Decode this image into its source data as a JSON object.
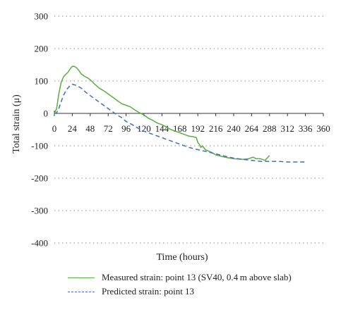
{
  "chart_data": {
    "type": "line",
    "title": "",
    "xlabel": "Time (hours)",
    "ylabel": "Total strain (μ)",
    "xlim": [
      0,
      360
    ],
    "ylim": [
      -400,
      300
    ],
    "xticks": [
      0,
      24,
      48,
      72,
      96,
      120,
      144,
      168,
      192,
      216,
      240,
      264,
      288,
      312,
      336,
      360
    ],
    "yticks": [
      300,
      200,
      100,
      0,
      -100,
      -200,
      -300,
      -400
    ],
    "grid": "horizontal dotted",
    "legend_position": "bottom",
    "series": [
      {
        "name": "Measured strain: point 13 (SV40, 0.4 m above slab)",
        "color": "#5aae3f",
        "style": "solid",
        "x": [
          0,
          3,
          6,
          9,
          12,
          15,
          18,
          21,
          24,
          27,
          30,
          33,
          36,
          40,
          44,
          48,
          54,
          60,
          66,
          72,
          78,
          84,
          90,
          96,
          102,
          108,
          114,
          120,
          126,
          132,
          138,
          144,
          150,
          156,
          162,
          168,
          174,
          180,
          186,
          190,
          192,
          194,
          196,
          198,
          202,
          210,
          216,
          228,
          240,
          252,
          260,
          266,
          270,
          276,
          282,
          288
        ],
        "y": [
          0,
          15,
          60,
          95,
          112,
          120,
          126,
          137,
          145,
          145,
          140,
          132,
          122,
          115,
          110,
          104,
          90,
          78,
          70,
          60,
          50,
          40,
          30,
          25,
          20,
          10,
          2,
          -5,
          -15,
          -22,
          -30,
          -35,
          -42,
          -50,
          -55,
          -60,
          -65,
          -70,
          -72,
          -75,
          -90,
          -95,
          -105,
          -100,
          -112,
          -120,
          -128,
          -135,
          -140,
          -142,
          -140,
          -135,
          -140,
          -140,
          -145,
          -130
        ]
      },
      {
        "name": "Predicted strain: point 13",
        "color": "#3f6fbe",
        "style": "dashed",
        "x": [
          0,
          3,
          6,
          9,
          12,
          15,
          18,
          21,
          24,
          27,
          30,
          33,
          36,
          42,
          48,
          54,
          60,
          66,
          72,
          78,
          84,
          90,
          96,
          102,
          108,
          114,
          120,
          132,
          144,
          156,
          168,
          180,
          192,
          204,
          216,
          228,
          240,
          252,
          264,
          276,
          288,
          300,
          312,
          324,
          336
        ],
        "y": [
          0,
          2,
          15,
          35,
          55,
          68,
          78,
          85,
          90,
          88,
          86,
          82,
          78,
          65,
          55,
          45,
          35,
          25,
          15,
          5,
          -5,
          -13,
          -25,
          -32,
          -40,
          -48,
          -55,
          -65,
          -75,
          -85,
          -95,
          -105,
          -112,
          -118,
          -125,
          -132,
          -138,
          -142,
          -145,
          -148,
          -148,
          -148,
          -150,
          -150,
          -150
        ]
      }
    ]
  }
}
